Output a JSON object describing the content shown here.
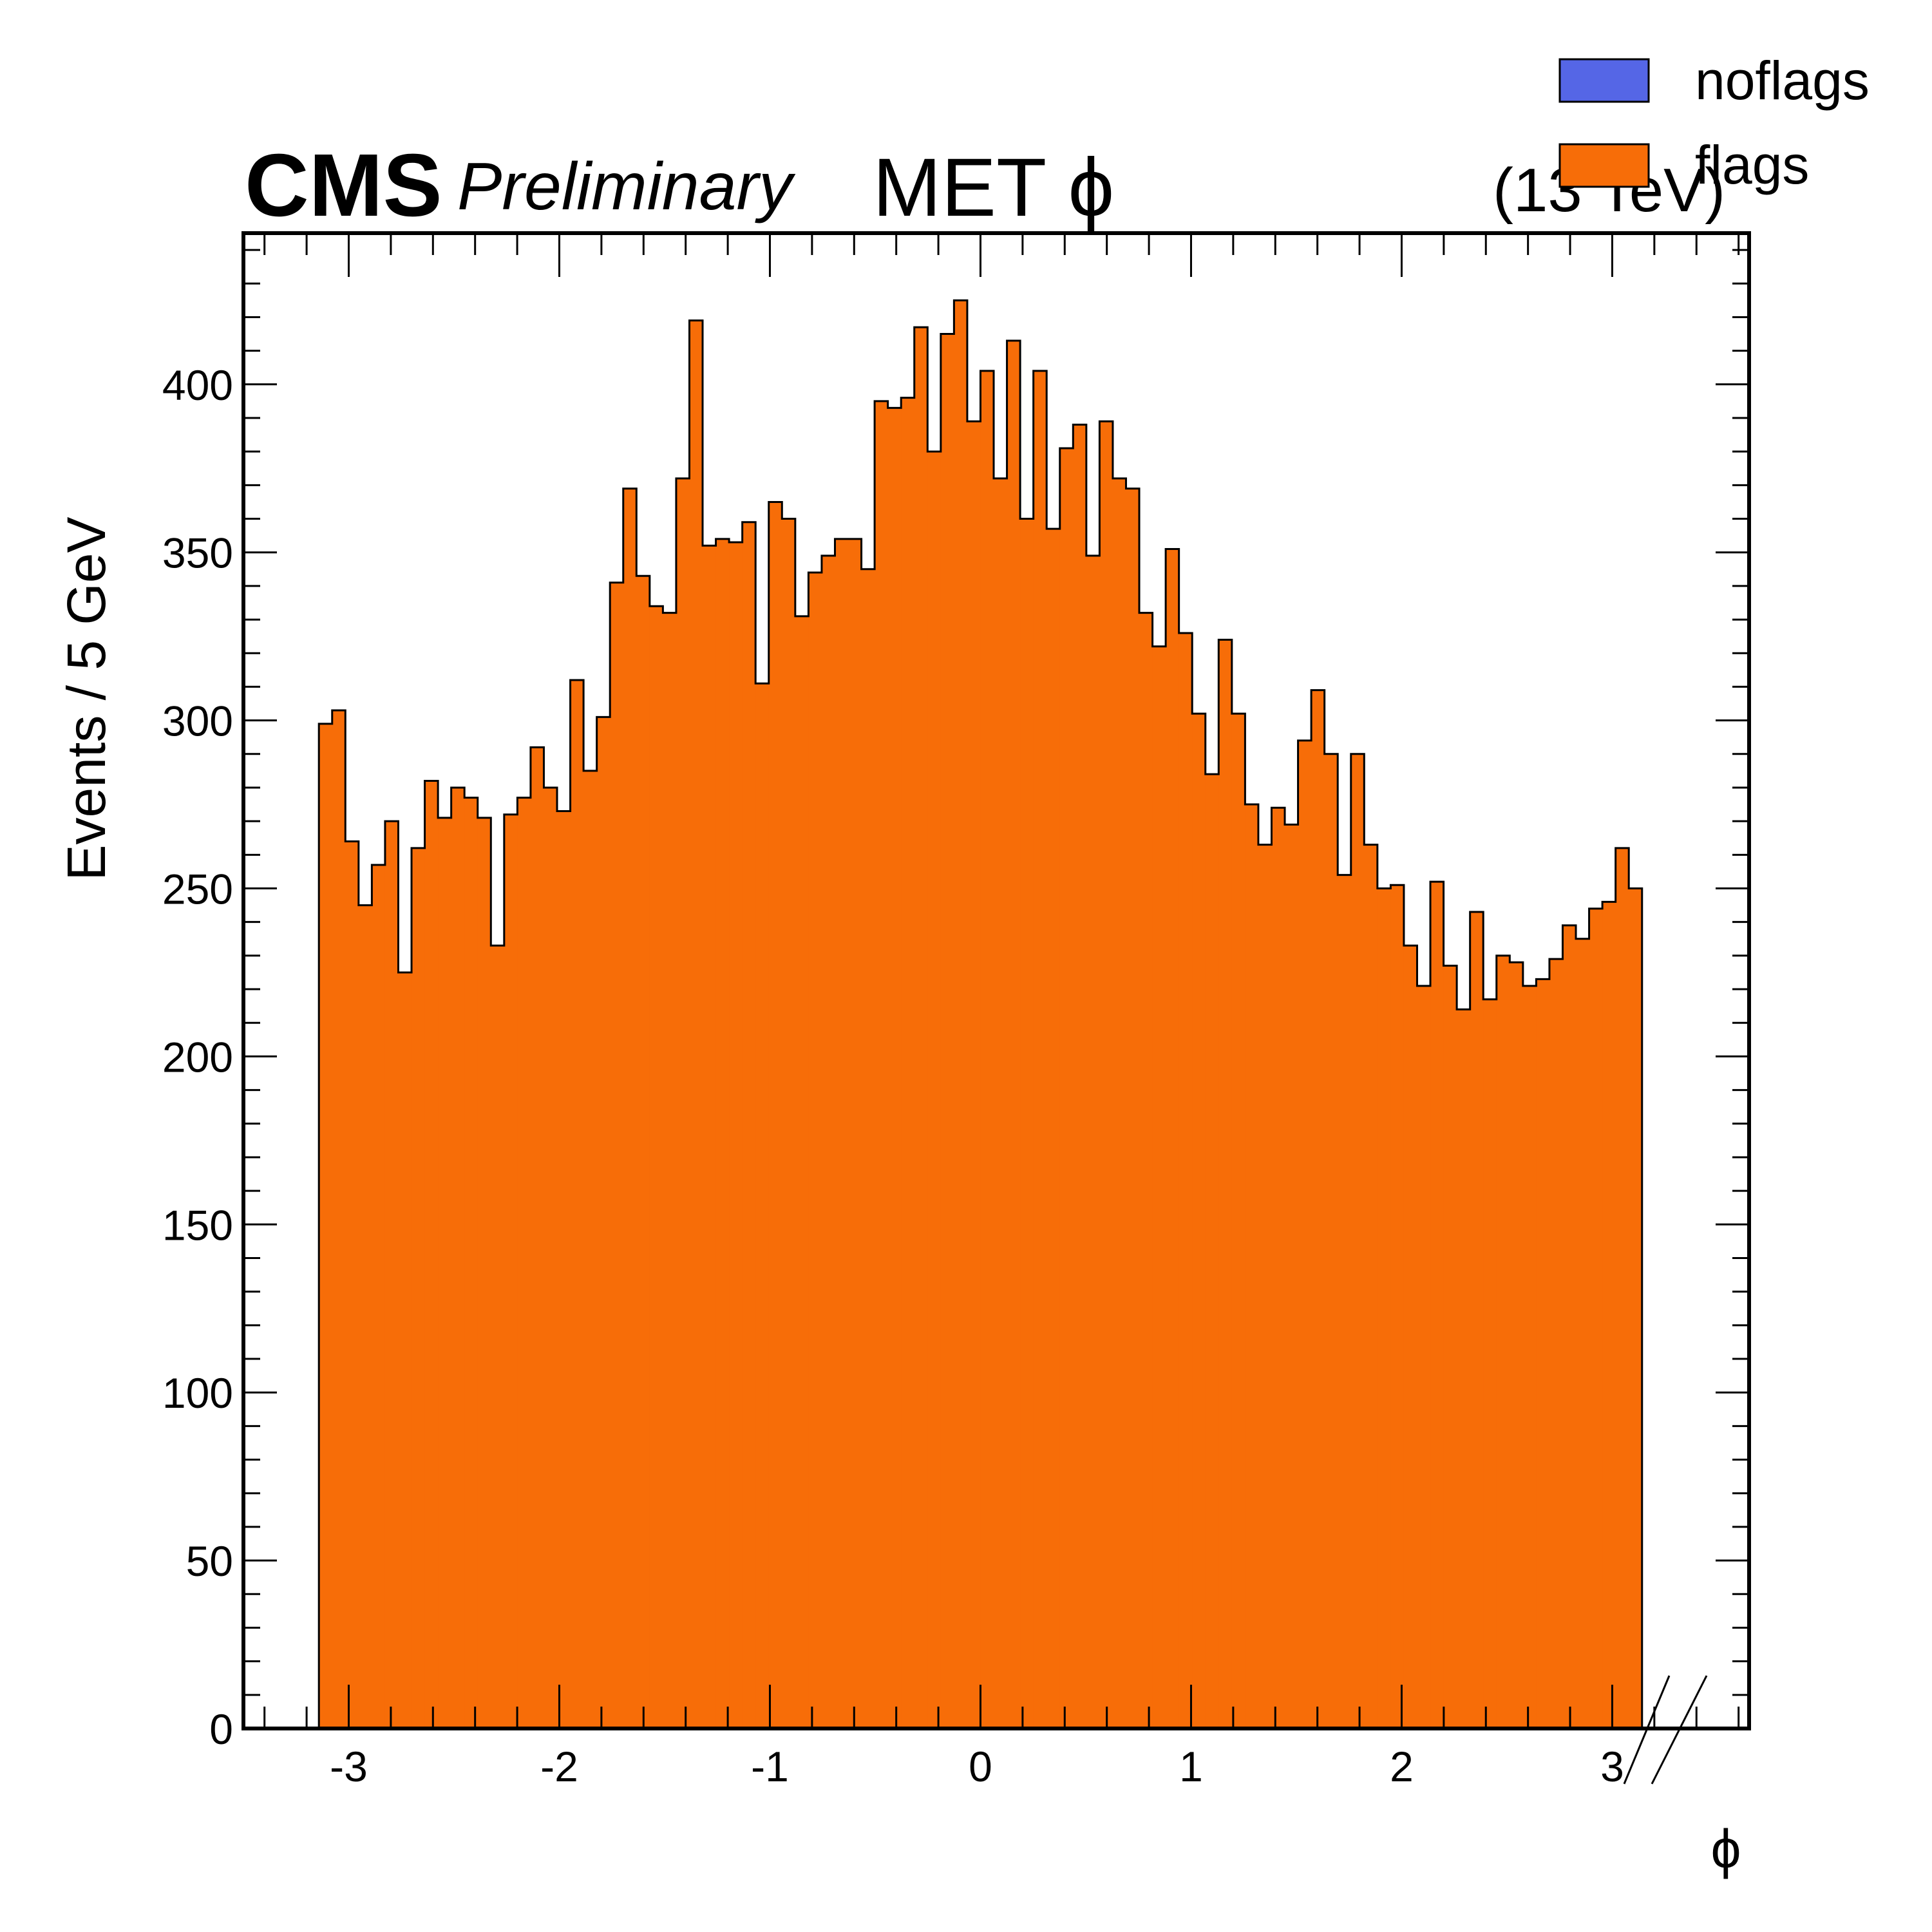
{
  "header": {
    "cms_label": "CMS",
    "preliminary_label": "Preliminary",
    "title": "MET ϕ",
    "energy_label": "(13 TeV)"
  },
  "legend": {
    "placement": "top-right",
    "entries": [
      {
        "label": "noflags",
        "color": "#5566e6"
      },
      {
        "label": "flags",
        "color": "#f76d08"
      }
    ]
  },
  "chart_data": {
    "type": "bar",
    "histogram": true,
    "title": "MET ϕ",
    "xlabel": "ϕ",
    "ylabel": "Events / 5 GeV",
    "xlim": [
      -3.5,
      3.65
    ],
    "ylim": [
      0,
      445
    ],
    "x_ticks": [
      -3,
      -2,
      -1,
      0,
      1,
      2,
      3
    ],
    "y_ticks": [
      0,
      50,
      100,
      150,
      200,
      250,
      300,
      350,
      400
    ],
    "bin_edges": [
      -3.1416,
      3.1416
    ],
    "bins": 100,
    "x_axis_break_after": 3.1416,
    "grid": false,
    "series": [
      {
        "name": "flags",
        "color": "#f76d08",
        "values": [
          299,
          303,
          264,
          245,
          257,
          270,
          225,
          262,
          282,
          271,
          280,
          277,
          271,
          233,
          272,
          277,
          292,
          280,
          273,
          312,
          285,
          301,
          341,
          369,
          343,
          334,
          332,
          372,
          419,
          352,
          354,
          353,
          359,
          311,
          365,
          360,
          331,
          344,
          349,
          354,
          354,
          345,
          395,
          393,
          396,
          417,
          380,
          415,
          425,
          389,
          404,
          372,
          413,
          360,
          404,
          357,
          381,
          388,
          349,
          389,
          372,
          369,
          332,
          322,
          351,
          326,
          302,
          284,
          324,
          302,
          275,
          263,
          274,
          269,
          294,
          309,
          290,
          254,
          290,
          263,
          250,
          251,
          233,
          221,
          252,
          227,
          214,
          243,
          217,
          230,
          228,
          221,
          223,
          229,
          239,
          235,
          244,
          246,
          262,
          250
        ]
      }
    ]
  }
}
